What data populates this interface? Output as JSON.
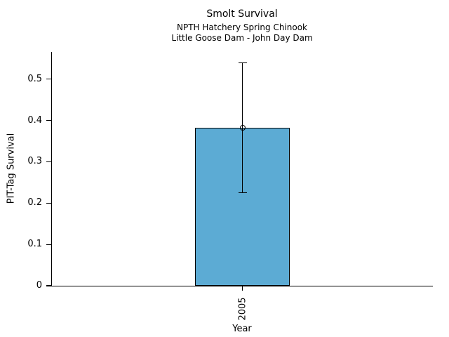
{
  "chart_data": {
    "type": "bar",
    "title": "Smolt Survival",
    "subtitle": [
      "NPTH Hatchery Spring Chinook",
      "Little Goose Dam - John Day Dam"
    ],
    "xlabel": "Year",
    "ylabel": "PIT-Tag Survival",
    "categories": [
      "2005"
    ],
    "values": [
      0.383
    ],
    "error_bars": [
      {
        "low": 0.225,
        "high": 0.54
      }
    ],
    "yticks": [
      0,
      0.1,
      0.2,
      0.3,
      0.4,
      0.5
    ],
    "ytick_labels": [
      "0",
      "0.1",
      "0.2",
      "0.3",
      "0.4",
      "0.5"
    ],
    "ylim": [
      0,
      0.566
    ],
    "bar_width_fraction": 0.25,
    "bar_color": "#5CABD4",
    "bar_edge_color": "#000000",
    "error_bar_color": "#000000",
    "marker": "open-circle",
    "grid": false,
    "legend": "none",
    "background_color": "#ffffff"
  }
}
